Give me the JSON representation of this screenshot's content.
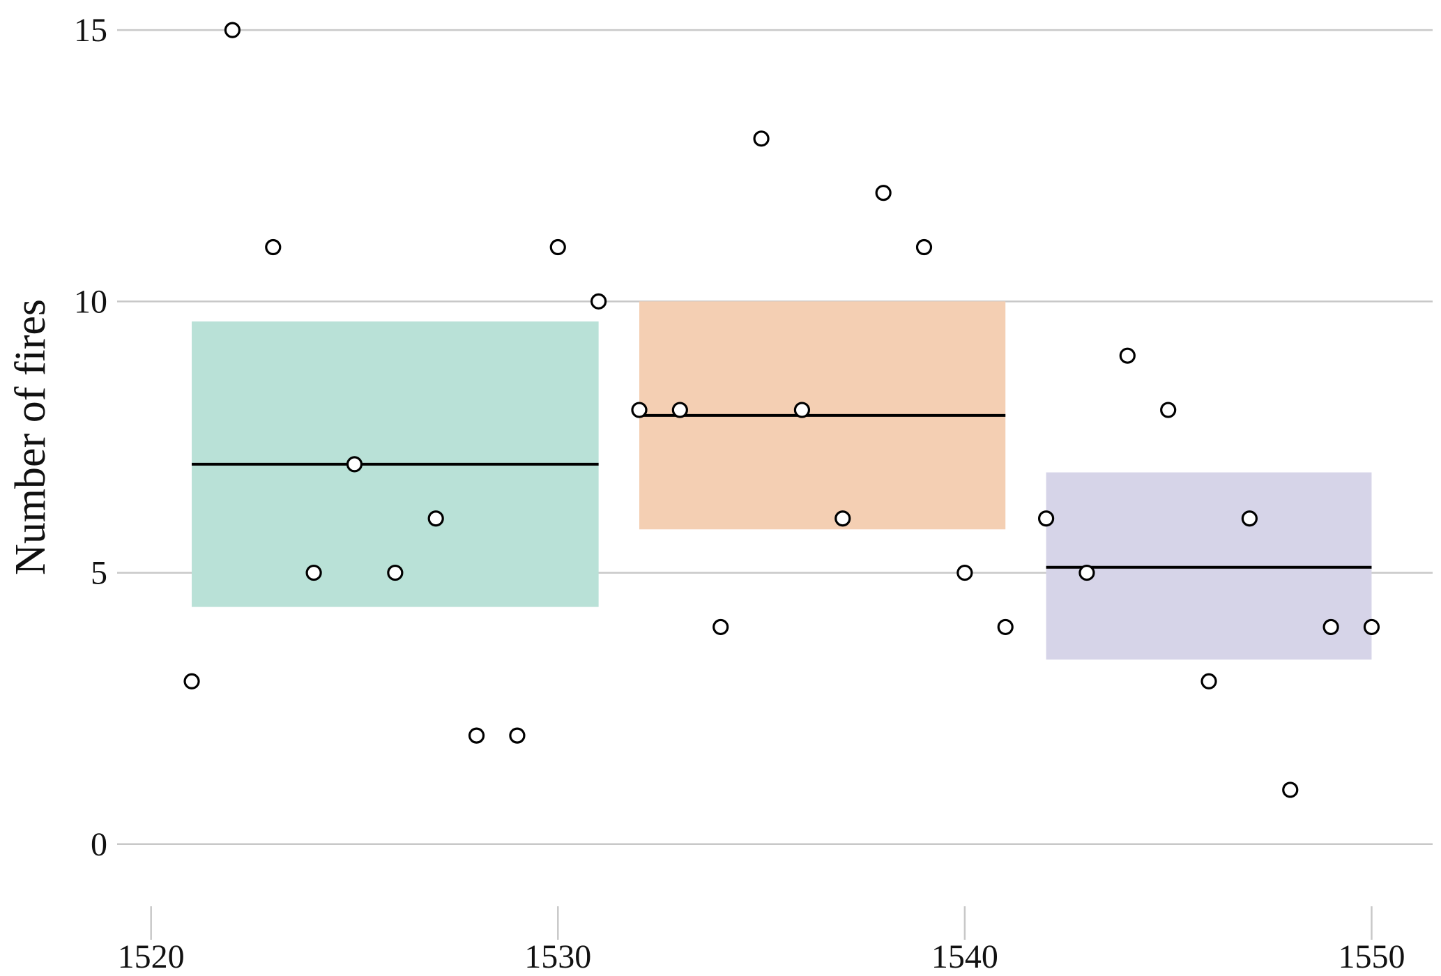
{
  "chart_data": {
    "type": "scatter",
    "title": "",
    "xlabel": "",
    "ylabel": "Number of fires",
    "xlim": [
      1519.2,
      1551.5
    ],
    "ylim": [
      -1.3,
      15.4
    ],
    "xticks": [
      1520,
      1530,
      1540,
      1550
    ],
    "yticks": [
      0,
      5,
      10,
      15
    ],
    "grid": "horizontal",
    "points": [
      {
        "x": 1521,
        "y": 3
      },
      {
        "x": 1522,
        "y": 15
      },
      {
        "x": 1523,
        "y": 11
      },
      {
        "x": 1524,
        "y": 5
      },
      {
        "x": 1525,
        "y": 7
      },
      {
        "x": 1526,
        "y": 5
      },
      {
        "x": 1527,
        "y": 6
      },
      {
        "x": 1528,
        "y": 2
      },
      {
        "x": 1529,
        "y": 2
      },
      {
        "x": 1530,
        "y": 11
      },
      {
        "x": 1531,
        "y": 10
      },
      {
        "x": 1532,
        "y": 8
      },
      {
        "x": 1533,
        "y": 8
      },
      {
        "x": 1534,
        "y": 4
      },
      {
        "x": 1535,
        "y": 13
      },
      {
        "x": 1536,
        "y": 8
      },
      {
        "x": 1537,
        "y": 6
      },
      {
        "x": 1538,
        "y": 12
      },
      {
        "x": 1539,
        "y": 11
      },
      {
        "x": 1540,
        "y": 5
      },
      {
        "x": 1541,
        "y": 4
      },
      {
        "x": 1542,
        "y": 6
      },
      {
        "x": 1543,
        "y": 5
      },
      {
        "x": 1544,
        "y": 9
      },
      {
        "x": 1545,
        "y": 8
      },
      {
        "x": 1546,
        "y": 3
      },
      {
        "x": 1547,
        "y": 6
      },
      {
        "x": 1548,
        "y": 1
      },
      {
        "x": 1549,
        "y": 4
      },
      {
        "x": 1550,
        "y": 4
      }
    ],
    "periods": [
      {
        "x_start": 1521,
        "x_end": 1531,
        "mean": 7.0,
        "band_low": 4.37,
        "band_high": 9.63,
        "color": "#b9e1d7"
      },
      {
        "x_start": 1532,
        "x_end": 1541,
        "mean": 7.9,
        "band_low": 5.8,
        "band_high": 10.0,
        "color": "#f4cfb3"
      },
      {
        "x_start": 1542,
        "x_end": 1550,
        "mean": 5.1,
        "band_low": 3.4,
        "band_high": 6.85,
        "color": "#d6d4e8"
      }
    ]
  }
}
